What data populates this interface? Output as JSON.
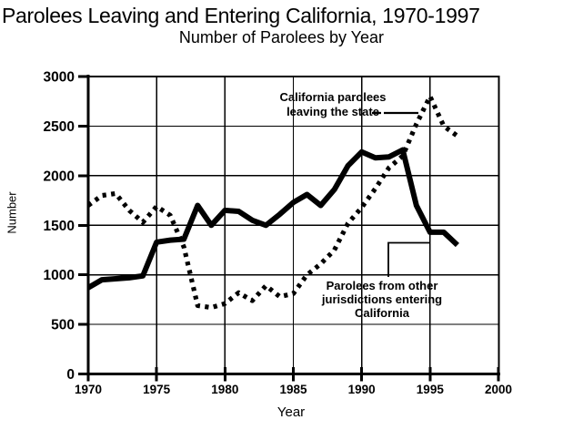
{
  "page": {
    "title": "Parolees Leaving and Entering California, 1970-1997",
    "subtitle": "Number of Parolees by Year"
  },
  "axes": {
    "x_title": "Year",
    "y_title": "Number"
  },
  "annotations": {
    "leaving_line1": "California parolees",
    "leaving_line2": "leaving the state",
    "entering_line1": "Parolees from other",
    "entering_line2": "jurisdictions entering",
    "entering_line3": "California"
  },
  "colors": {
    "ink": "#000000",
    "paper": "#ffffff"
  },
  "chart_data": {
    "type": "line",
    "title": "Parolees Leaving and Entering California, 1970-1997",
    "subtitle": "Number of Parolees by Year",
    "xlabel": "Year",
    "ylabel": "Number",
    "xlim": [
      1970,
      2000
    ],
    "ylim": [
      0,
      3000
    ],
    "xticks": [
      1970,
      1975,
      1980,
      1985,
      1990,
      1995,
      2000
    ],
    "yticks": [
      0,
      500,
      1000,
      1500,
      2000,
      2500,
      3000
    ],
    "grid": true,
    "legend_position": "inline-annotations",
    "x": [
      1970,
      1971,
      1972,
      1973,
      1974,
      1975,
      1976,
      1977,
      1978,
      1979,
      1980,
      1981,
      1982,
      1983,
      1984,
      1985,
      1986,
      1987,
      1988,
      1989,
      1990,
      1991,
      1992,
      1993,
      1994,
      1995,
      1996,
      1997
    ],
    "series": [
      {
        "name": "California parolees leaving the state",
        "line_style": "dotted",
        "values": [
          1700,
          1800,
          1820,
          1650,
          1530,
          1690,
          1600,
          1280,
          690,
          670,
          710,
          820,
          740,
          890,
          780,
          810,
          1000,
          1110,
          1250,
          1520,
          1680,
          1870,
          2080,
          2200,
          2520,
          2800,
          2500,
          2400
        ]
      },
      {
        "name": "Parolees from other jurisdictions entering California",
        "line_style": "solid",
        "values": [
          870,
          950,
          960,
          970,
          990,
          1330,
          1350,
          1360,
          1700,
          1500,
          1650,
          1640,
          1550,
          1500,
          1610,
          1730,
          1810,
          1700,
          1860,
          2100,
          2240,
          2180,
          2190,
          2260,
          1700,
          1430,
          1430,
          1300
        ]
      }
    ]
  }
}
